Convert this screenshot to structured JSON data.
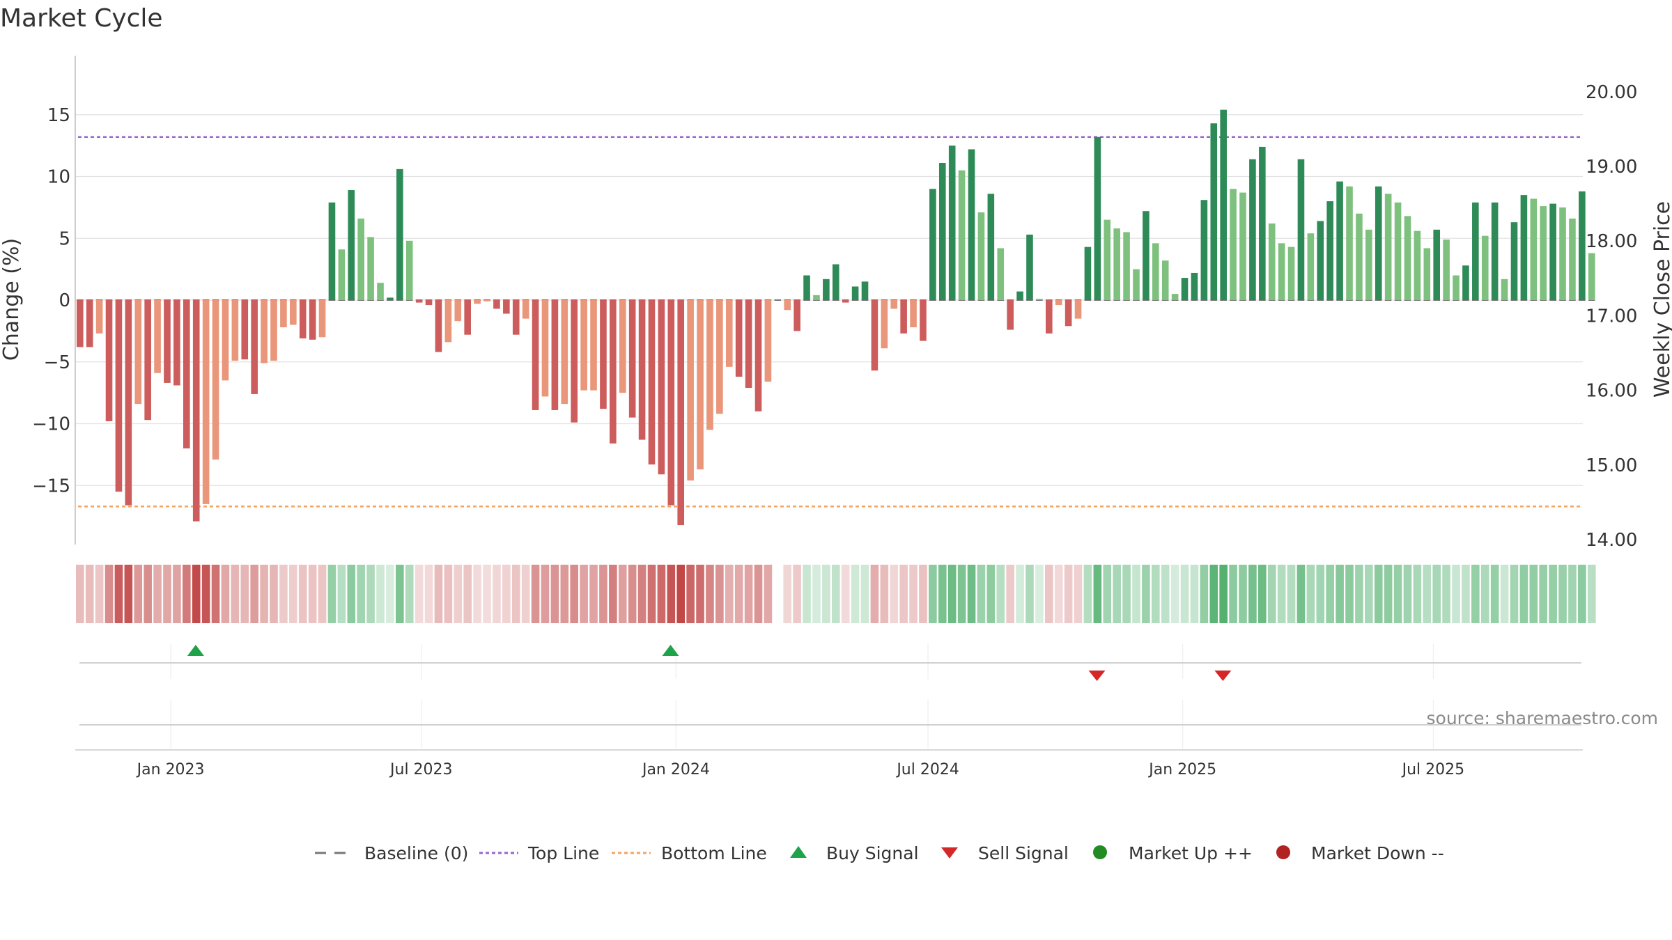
{
  "chart_data": {
    "type": "bar",
    "title": "Market Cycle",
    "ylabel_left": "Change (%)",
    "ylabel_right": "Weekly Close Price",
    "ylim_left": [
      -20,
      20
    ],
    "yticks_left": [
      15,
      10,
      5,
      0,
      -5,
      -10,
      -15
    ],
    "ytick_labels_left": [
      "15",
      "10",
      "5",
      "0",
      "−5",
      "−10",
      "−15"
    ],
    "ylim_right": [
      14.0,
      20.0
    ],
    "yticks_right": [
      20.0,
      19.0,
      18.0,
      17.0,
      16.0,
      15.0,
      14.0
    ],
    "ytick_labels_right": [
      "20.00",
      "19.00",
      "18.00",
      "17.00",
      "16.00",
      "15.00",
      "14.00"
    ],
    "top_line": 13.2,
    "bottom_line": -16.7,
    "x_start": "2022-10-24",
    "x_end": "2025-10-17",
    "xtick_dates": [
      "2023-01-01",
      "2023-07-01",
      "2024-01-01",
      "2024-07-01",
      "2025-01-01",
      "2025-07-01"
    ],
    "xtick_labels": [
      "Jan 2023",
      "Jul 2023",
      "Jan 2024",
      "Jul 2024",
      "Jan 2025",
      "Jul 2025"
    ],
    "grid": true,
    "colors": {
      "strong_up": "#2e8b57",
      "up": "#7ec17e",
      "strong_down": "#cd5c5c",
      "down": "#e9967a",
      "top_line": "#9966cc",
      "bottom_line": "#f4a460",
      "buy_signal": "#1fa34a",
      "sell_signal": "#d62728",
      "market_up": "#228b22",
      "market_down": "#b22222",
      "baseline": "#777777"
    },
    "weekly_change": [
      {
        "date": "2022-10-24",
        "value": -3.8,
        "strength": "strong"
      },
      {
        "date": "2022-10-31",
        "value": -3.8,
        "strength": "strong"
      },
      {
        "date": "2022-11-07",
        "value": -2.7,
        "strength": "weak"
      },
      {
        "date": "2022-11-14",
        "value": -9.8,
        "strength": "strong"
      },
      {
        "date": "2022-11-21",
        "value": -15.5,
        "strength": "strong"
      },
      {
        "date": "2022-11-28",
        "value": -16.6,
        "strength": "strong"
      },
      {
        "date": "2022-12-05",
        "value": -8.4,
        "strength": "weak"
      },
      {
        "date": "2022-12-12",
        "value": -9.7,
        "strength": "strong"
      },
      {
        "date": "2022-12-19",
        "value": -5.9,
        "strength": "weak"
      },
      {
        "date": "2022-12-26",
        "value": -6.7,
        "strength": "strong"
      },
      {
        "date": "2023-01-02",
        "value": -6.9,
        "strength": "strong"
      },
      {
        "date": "2023-01-09",
        "value": -12.0,
        "strength": "strong"
      },
      {
        "date": "2023-01-16",
        "value": -17.9,
        "strength": "strong"
      },
      {
        "date": "2023-01-23",
        "value": -16.5,
        "strength": "weak"
      },
      {
        "date": "2023-01-30",
        "value": -12.9,
        "strength": "weak"
      },
      {
        "date": "2023-02-06",
        "value": -6.5,
        "strength": "weak"
      },
      {
        "date": "2023-02-13",
        "value": -4.9,
        "strength": "weak"
      },
      {
        "date": "2023-02-20",
        "value": -4.8,
        "strength": "strong"
      },
      {
        "date": "2023-02-27",
        "value": -7.6,
        "strength": "strong"
      },
      {
        "date": "2023-03-06",
        "value": -5.1,
        "strength": "weak"
      },
      {
        "date": "2023-03-13",
        "value": -4.9,
        "strength": "weak"
      },
      {
        "date": "2023-03-20",
        "value": -2.2,
        "strength": "weak"
      },
      {
        "date": "2023-03-27",
        "value": -2.0,
        "strength": "weak"
      },
      {
        "date": "2023-04-03",
        "value": -3.1,
        "strength": "strong"
      },
      {
        "date": "2023-04-10",
        "value": -3.2,
        "strength": "strong"
      },
      {
        "date": "2023-04-17",
        "value": -3.0,
        "strength": "weak"
      },
      {
        "date": "2023-04-24",
        "value": 7.9,
        "strength": "strong"
      },
      {
        "date": "2023-05-01",
        "value": 4.1,
        "strength": "weak"
      },
      {
        "date": "2023-05-08",
        "value": 8.9,
        "strength": "strong"
      },
      {
        "date": "2023-05-15",
        "value": 6.6,
        "strength": "weak"
      },
      {
        "date": "2023-05-22",
        "value": 5.1,
        "strength": "weak"
      },
      {
        "date": "2023-05-29",
        "value": 1.4,
        "strength": "weak"
      },
      {
        "date": "2023-06-05",
        "value": 0.2,
        "strength": "strong"
      },
      {
        "date": "2023-06-12",
        "value": 10.6,
        "strength": "strong"
      },
      {
        "date": "2023-06-19",
        "value": 4.8,
        "strength": "weak"
      },
      {
        "date": "2023-06-26",
        "value": -0.2,
        "strength": "strong"
      },
      {
        "date": "2023-07-03",
        "value": -0.4,
        "strength": "strong"
      },
      {
        "date": "2023-07-10",
        "value": -4.2,
        "strength": "strong"
      },
      {
        "date": "2023-07-17",
        "value": -3.4,
        "strength": "weak"
      },
      {
        "date": "2023-07-24",
        "value": -1.7,
        "strength": "weak"
      },
      {
        "date": "2023-07-31",
        "value": -2.8,
        "strength": "strong"
      },
      {
        "date": "2023-08-07",
        "value": -0.3,
        "strength": "weak"
      },
      {
        "date": "2023-08-14",
        "value": -0.1,
        "strength": "weak"
      },
      {
        "date": "2023-08-21",
        "value": -0.7,
        "strength": "strong"
      },
      {
        "date": "2023-08-28",
        "value": -1.1,
        "strength": "strong"
      },
      {
        "date": "2023-09-04",
        "value": -2.8,
        "strength": "strong"
      },
      {
        "date": "2023-09-11",
        "value": -1.5,
        "strength": "weak"
      },
      {
        "date": "2023-09-18",
        "value": -8.9,
        "strength": "strong"
      },
      {
        "date": "2023-09-25",
        "value": -7.8,
        "strength": "weak"
      },
      {
        "date": "2023-10-02",
        "value": -8.9,
        "strength": "strong"
      },
      {
        "date": "2023-10-09",
        "value": -8.4,
        "strength": "weak"
      },
      {
        "date": "2023-10-16",
        "value": -9.9,
        "strength": "strong"
      },
      {
        "date": "2023-10-23",
        "value": -7.3,
        "strength": "weak"
      },
      {
        "date": "2023-10-30",
        "value": -7.3,
        "strength": "weak"
      },
      {
        "date": "2023-11-06",
        "value": -8.8,
        "strength": "strong"
      },
      {
        "date": "2023-11-13",
        "value": -11.6,
        "strength": "strong"
      },
      {
        "date": "2023-11-20",
        "value": -7.5,
        "strength": "weak"
      },
      {
        "date": "2023-11-27",
        "value": -9.5,
        "strength": "strong"
      },
      {
        "date": "2023-12-04",
        "value": -11.3,
        "strength": "strong"
      },
      {
        "date": "2023-12-11",
        "value": -13.3,
        "strength": "strong"
      },
      {
        "date": "2023-12-18",
        "value": -14.1,
        "strength": "strong"
      },
      {
        "date": "2023-12-25",
        "value": -16.6,
        "strength": "strong"
      },
      {
        "date": "2024-01-01",
        "value": -18.2,
        "strength": "strong"
      },
      {
        "date": "2024-01-08",
        "value": -14.6,
        "strength": "weak"
      },
      {
        "date": "2024-01-15",
        "value": -13.7,
        "strength": "weak"
      },
      {
        "date": "2024-01-22",
        "value": -10.5,
        "strength": "weak"
      },
      {
        "date": "2024-01-29",
        "value": -9.2,
        "strength": "weak"
      },
      {
        "date": "2024-02-05",
        "value": -5.4,
        "strength": "weak"
      },
      {
        "date": "2024-02-12",
        "value": -6.2,
        "strength": "strong"
      },
      {
        "date": "2024-02-19",
        "value": -7.1,
        "strength": "strong"
      },
      {
        "date": "2024-02-26",
        "value": -9.0,
        "strength": "strong"
      },
      {
        "date": "2024-03-04",
        "value": -6.6,
        "strength": "weak"
      },
      {
        "date": "2024-03-11",
        "value": 0.0,
        "strength": "weak"
      },
      {
        "date": "2024-03-18",
        "value": -0.8,
        "strength": "weak"
      },
      {
        "date": "2024-03-25",
        "value": -2.5,
        "strength": "strong"
      },
      {
        "date": "2024-04-01",
        "value": 2.0,
        "strength": "strong"
      },
      {
        "date": "2024-04-08",
        "value": 0.4,
        "strength": "weak"
      },
      {
        "date": "2024-04-15",
        "value": 1.7,
        "strength": "strong"
      },
      {
        "date": "2024-04-22",
        "value": 2.9,
        "strength": "strong"
      },
      {
        "date": "2024-04-29",
        "value": -0.2,
        "strength": "strong"
      },
      {
        "date": "2024-05-06",
        "value": 1.1,
        "strength": "strong"
      },
      {
        "date": "2024-05-13",
        "value": 1.5,
        "strength": "strong"
      },
      {
        "date": "2024-05-20",
        "value": -5.7,
        "strength": "strong"
      },
      {
        "date": "2024-05-27",
        "value": -3.9,
        "strength": "weak"
      },
      {
        "date": "2024-06-03",
        "value": -0.7,
        "strength": "weak"
      },
      {
        "date": "2024-06-10",
        "value": -2.7,
        "strength": "strong"
      },
      {
        "date": "2024-06-17",
        "value": -2.2,
        "strength": "weak"
      },
      {
        "date": "2024-06-24",
        "value": -3.3,
        "strength": "strong"
      },
      {
        "date": "2024-07-01",
        "value": 9.0,
        "strength": "strong"
      },
      {
        "date": "2024-07-08",
        "value": 11.1,
        "strength": "strong"
      },
      {
        "date": "2024-07-15",
        "value": 12.5,
        "strength": "strong"
      },
      {
        "date": "2024-07-22",
        "value": 10.5,
        "strength": "weak"
      },
      {
        "date": "2024-07-29",
        "value": 12.2,
        "strength": "strong"
      },
      {
        "date": "2024-08-05",
        "value": 7.1,
        "strength": "weak"
      },
      {
        "date": "2024-08-12",
        "value": 8.6,
        "strength": "strong"
      },
      {
        "date": "2024-08-19",
        "value": 4.2,
        "strength": "weak"
      },
      {
        "date": "2024-08-26",
        "value": -2.4,
        "strength": "strong"
      },
      {
        "date": "2024-09-02",
        "value": 0.7,
        "strength": "strong"
      },
      {
        "date": "2024-09-09",
        "value": 5.3,
        "strength": "strong"
      },
      {
        "date": "2024-09-16",
        "value": 0.1,
        "strength": "weak"
      },
      {
        "date": "2024-09-23",
        "value": -2.7,
        "strength": "strong"
      },
      {
        "date": "2024-09-30",
        "value": -0.4,
        "strength": "weak"
      },
      {
        "date": "2024-10-07",
        "value": -2.1,
        "strength": "strong"
      },
      {
        "date": "2024-10-14",
        "value": -1.5,
        "strength": "weak"
      },
      {
        "date": "2024-10-21",
        "value": 4.3,
        "strength": "strong"
      },
      {
        "date": "2024-10-28",
        "value": 13.2,
        "strength": "strong"
      },
      {
        "date": "2024-11-04",
        "value": 6.5,
        "strength": "weak"
      },
      {
        "date": "2024-11-11",
        "value": 5.8,
        "strength": "weak"
      },
      {
        "date": "2024-11-18",
        "value": 5.5,
        "strength": "weak"
      },
      {
        "date": "2024-11-25",
        "value": 2.5,
        "strength": "weak"
      },
      {
        "date": "2024-12-02",
        "value": 7.2,
        "strength": "strong"
      },
      {
        "date": "2024-12-09",
        "value": 4.6,
        "strength": "weak"
      },
      {
        "date": "2024-12-16",
        "value": 3.2,
        "strength": "weak"
      },
      {
        "date": "2024-12-23",
        "value": 0.5,
        "strength": "weak"
      },
      {
        "date": "2024-12-30",
        "value": 1.8,
        "strength": "strong"
      },
      {
        "date": "2025-01-06",
        "value": 2.2,
        "strength": "strong"
      },
      {
        "date": "2025-01-13",
        "value": 8.1,
        "strength": "strong"
      },
      {
        "date": "2025-01-20",
        "value": 14.3,
        "strength": "strong"
      },
      {
        "date": "2025-01-27",
        "value": 15.4,
        "strength": "strong"
      },
      {
        "date": "2025-02-03",
        "value": 9.0,
        "strength": "weak"
      },
      {
        "date": "2025-02-10",
        "value": 8.7,
        "strength": "weak"
      },
      {
        "date": "2025-02-17",
        "value": 11.4,
        "strength": "strong"
      },
      {
        "date": "2025-02-24",
        "value": 12.4,
        "strength": "strong"
      },
      {
        "date": "2025-03-03",
        "value": 6.2,
        "strength": "weak"
      },
      {
        "date": "2025-03-10",
        "value": 4.6,
        "strength": "weak"
      },
      {
        "date": "2025-03-17",
        "value": 4.3,
        "strength": "weak"
      },
      {
        "date": "2025-03-24",
        "value": 11.4,
        "strength": "strong"
      },
      {
        "date": "2025-03-31",
        "value": 5.4,
        "strength": "weak"
      },
      {
        "date": "2025-04-07",
        "value": 6.4,
        "strength": "strong"
      },
      {
        "date": "2025-04-14",
        "value": 8.0,
        "strength": "strong"
      },
      {
        "date": "2025-04-21",
        "value": 9.6,
        "strength": "strong"
      },
      {
        "date": "2025-04-28",
        "value": 9.2,
        "strength": "weak"
      },
      {
        "date": "2025-05-05",
        "value": 7.0,
        "strength": "weak"
      },
      {
        "date": "2025-05-12",
        "value": 5.7,
        "strength": "weak"
      },
      {
        "date": "2025-05-19",
        "value": 9.2,
        "strength": "strong"
      },
      {
        "date": "2025-05-26",
        "value": 8.6,
        "strength": "weak"
      },
      {
        "date": "2025-06-02",
        "value": 7.9,
        "strength": "weak"
      },
      {
        "date": "2025-06-09",
        "value": 6.8,
        "strength": "weak"
      },
      {
        "date": "2025-06-16",
        "value": 5.6,
        "strength": "weak"
      },
      {
        "date": "2025-06-23",
        "value": 4.2,
        "strength": "weak"
      },
      {
        "date": "2025-06-30",
        "value": 5.7,
        "strength": "strong"
      },
      {
        "date": "2025-07-07",
        "value": 4.9,
        "strength": "weak"
      },
      {
        "date": "2025-07-14",
        "value": 2.0,
        "strength": "weak"
      },
      {
        "date": "2025-07-21",
        "value": 2.8,
        "strength": "strong"
      },
      {
        "date": "2025-07-28",
        "value": 7.9,
        "strength": "strong"
      },
      {
        "date": "2025-08-04",
        "value": 5.2,
        "strength": "weak"
      },
      {
        "date": "2025-08-11",
        "value": 7.9,
        "strength": "strong"
      },
      {
        "date": "2025-08-18",
        "value": 1.7,
        "strength": "weak"
      },
      {
        "date": "2025-08-25",
        "value": 6.3,
        "strength": "strong"
      },
      {
        "date": "2025-09-01",
        "value": 8.5,
        "strength": "strong"
      },
      {
        "date": "2025-09-08",
        "value": 8.2,
        "strength": "weak"
      },
      {
        "date": "2025-09-15",
        "value": 7.6,
        "strength": "weak"
      },
      {
        "date": "2025-09-22",
        "value": 7.8,
        "strength": "strong"
      },
      {
        "date": "2025-09-29",
        "value": 7.5,
        "strength": "weak"
      },
      {
        "date": "2025-10-06",
        "value": 6.6,
        "strength": "weak"
      },
      {
        "date": "2025-10-13",
        "value": 8.8,
        "strength": "strong"
      },
      {
        "date": "2025-10-20",
        "value": 3.8,
        "strength": "weak"
      }
    ],
    "buy_signals": [
      "2023-01-16",
      "2023-12-25"
    ],
    "sell_signals": [
      "2024-10-28",
      "2025-01-27"
    ],
    "legend": [
      {
        "label": "Baseline (0)",
        "symbol": "dash-line",
        "color": "#777777"
      },
      {
        "label": "Top Line",
        "symbol": "dotted-line",
        "color": "#9966cc"
      },
      {
        "label": "Bottom Line",
        "symbol": "dotted-line",
        "color": "#f4a460"
      },
      {
        "label": "Buy Signal",
        "symbol": "triangle-up",
        "color": "#1fa34a"
      },
      {
        "label": "Sell Signal",
        "symbol": "triangle-down",
        "color": "#d62728"
      },
      {
        "label": "Market Up ++",
        "symbol": "circle",
        "color": "#228b22"
      },
      {
        "label": "Market Down --",
        "symbol": "circle",
        "color": "#b22222"
      }
    ],
    "legend_position": "bottom-center",
    "source": "source: sharemaestro.com"
  }
}
